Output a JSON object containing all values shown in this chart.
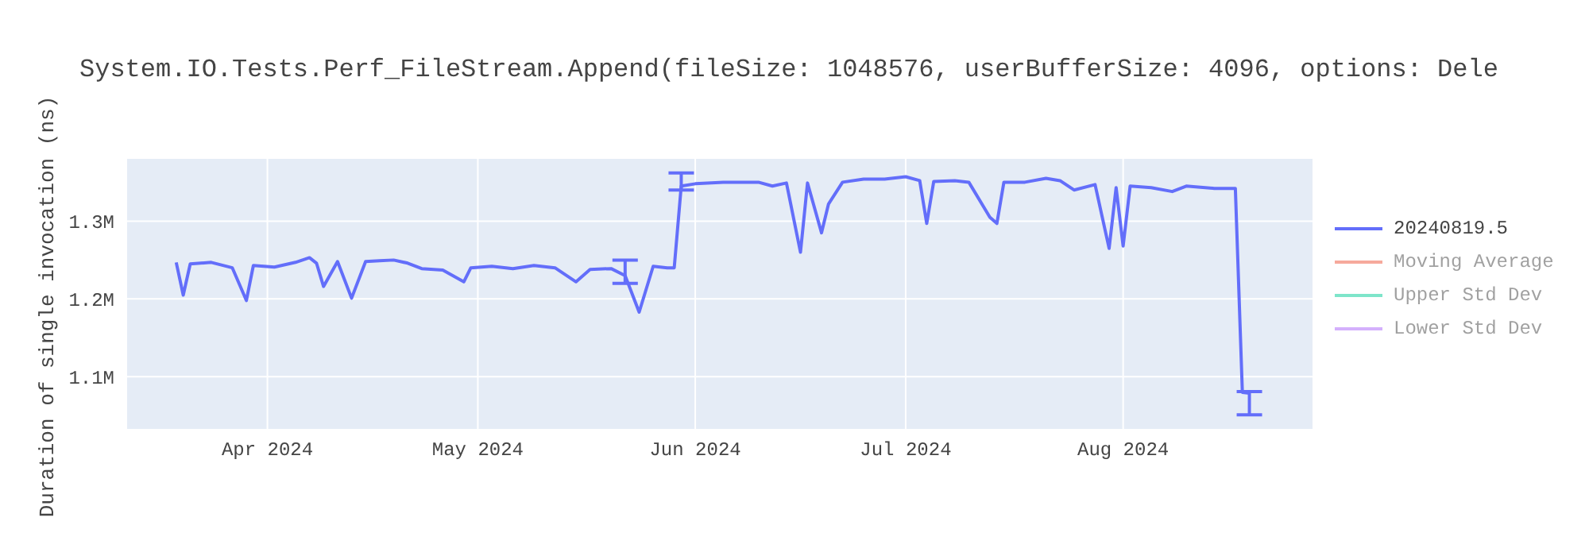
{
  "chart_data": {
    "type": "line",
    "title": "System.IO.Tests.Perf_FileStream.Append(fileSize: 1048576, userBufferSize: 4096, options: Dele",
    "ylabel": "Duration of single invocation (ns)",
    "x": [
      "2024-03-19",
      "2024-03-20",
      "2024-03-21",
      "2024-03-24",
      "2024-03-27",
      "2024-03-29",
      "2024-03-30",
      "2024-04-02",
      "2024-04-05",
      "2024-04-07",
      "2024-04-08",
      "2024-04-09",
      "2024-04-11",
      "2024-04-13",
      "2024-04-15",
      "2024-04-17",
      "2024-04-19",
      "2024-04-21",
      "2024-04-23",
      "2024-04-26",
      "2024-04-29",
      "2024-04-30",
      "2024-05-03",
      "2024-05-06",
      "2024-05-09",
      "2024-05-12",
      "2024-05-15",
      "2024-05-17",
      "2024-05-20",
      "2024-05-22",
      "2024-05-24",
      "2024-05-26",
      "2024-05-28",
      "2024-05-29",
      "2024-05-30",
      "2024-06-01",
      "2024-06-05",
      "2024-06-10",
      "2024-06-12",
      "2024-06-14",
      "2024-06-16",
      "2024-06-17",
      "2024-06-19",
      "2024-06-20",
      "2024-06-22",
      "2024-06-25",
      "2024-06-28",
      "2024-07-01",
      "2024-07-03",
      "2024-07-04",
      "2024-07-05",
      "2024-07-08",
      "2024-07-10",
      "2024-07-13",
      "2024-07-14",
      "2024-07-15",
      "2024-07-18",
      "2024-07-21",
      "2024-07-23",
      "2024-07-25",
      "2024-07-28",
      "2024-07-30",
      "2024-07-31",
      "2024-08-01",
      "2024-08-02",
      "2024-08-05",
      "2024-08-08",
      "2024-08-10",
      "2024-08-14",
      "2024-08-17",
      "2024-08-18",
      "2024-08-19"
    ],
    "series": [
      {
        "name": "20240819.5",
        "color": "#636efa",
        "values": [
          1247000,
          1205000,
          1245000,
          1247000,
          1240000,
          1198000,
          1243000,
          1241000,
          1247000,
          1253000,
          1246000,
          1216000,
          1248000,
          1201000,
          1248000,
          1249000,
          1250000,
          1246000,
          1239000,
          1237000,
          1222000,
          1240000,
          1242000,
          1239000,
          1243000,
          1240000,
          1222000,
          1238000,
          1239000,
          1230000,
          1183000,
          1242000,
          1240000,
          1240000,
          1345000,
          1348000,
          1350000,
          1350000,
          1345000,
          1349000,
          1260000,
          1349000,
          1285000,
          1322000,
          1350000,
          1354000,
          1354000,
          1357000,
          1352000,
          1297000,
          1351000,
          1352000,
          1350000,
          1305000,
          1297000,
          1350000,
          1350000,
          1355000,
          1352000,
          1340000,
          1347000,
          1265000,
          1343000,
          1268000,
          1345000,
          1343000,
          1338000,
          1345000,
          1342000,
          1342000,
          1080000,
          1079000
        ],
        "errors": [
          null,
          null,
          null,
          null,
          null,
          null,
          null,
          null,
          null,
          null,
          null,
          null,
          null,
          null,
          null,
          null,
          null,
          null,
          null,
          null,
          null,
          null,
          null,
          null,
          null,
          null,
          null,
          null,
          null,
          [
            1220000,
            1250000
          ],
          null,
          null,
          null,
          null,
          [
            1340000,
            1362000
          ],
          null,
          null,
          null,
          null,
          null,
          null,
          null,
          null,
          null,
          null,
          null,
          null,
          null,
          null,
          null,
          null,
          null,
          null,
          null,
          null,
          null,
          null,
          null,
          null,
          null,
          null,
          null,
          null,
          null,
          null,
          null,
          null,
          null,
          null,
          null,
          null,
          [
            1051000,
            1081000
          ]
        ]
      },
      {
        "name": "Moving Average",
        "color": "#ef553b",
        "values": [
          null,
          null,
          null,
          null,
          null,
          null,
          null,
          null,
          null,
          null,
          null,
          null,
          null,
          null,
          null,
          null,
          null,
          null,
          null,
          null,
          null,
          null,
          null,
          null,
          null,
          null,
          null,
          null,
          null,
          null,
          null,
          null,
          null,
          null,
          null,
          null,
          null,
          null,
          null,
          null,
          null,
          null,
          null,
          null,
          null,
          null,
          null,
          null,
          null,
          null,
          null,
          null,
          null,
          null,
          null,
          null,
          null,
          null,
          null,
          null,
          null,
          null,
          null,
          null,
          null,
          null,
          null,
          null,
          null,
          null,
          null,
          null
        ]
      },
      {
        "name": "Upper Std Dev",
        "color": "#00cc96",
        "values": [
          null,
          null,
          null,
          null,
          null,
          null,
          null,
          null,
          null,
          null,
          null,
          null,
          null,
          null,
          null,
          null,
          null,
          null,
          null,
          null,
          null,
          null,
          null,
          null,
          null,
          null,
          null,
          null,
          null,
          null,
          null,
          null,
          null,
          null,
          null,
          null,
          null,
          null,
          null,
          null,
          null,
          null,
          null,
          null,
          null,
          null,
          null,
          null,
          null,
          null,
          null,
          null,
          null,
          null,
          null,
          null,
          null,
          null,
          null,
          null,
          null,
          null,
          null,
          null,
          null,
          null,
          null,
          null,
          null,
          null,
          null,
          null
        ]
      },
      {
        "name": "Lower Std Dev",
        "color": "#ab63fa",
        "values": [
          null,
          null,
          null,
          null,
          null,
          null,
          null,
          null,
          null,
          null,
          null,
          null,
          null,
          null,
          null,
          null,
          null,
          null,
          null,
          null,
          null,
          null,
          null,
          null,
          null,
          null,
          null,
          null,
          null,
          null,
          null,
          null,
          null,
          null,
          null,
          null,
          null,
          null,
          null,
          null,
          null,
          null,
          null,
          null,
          null,
          null,
          null,
          null,
          null,
          null,
          null,
          null,
          null,
          null,
          null,
          null,
          null,
          null,
          null,
          null,
          null,
          null,
          null,
          null,
          null,
          null,
          null,
          null,
          null,
          null,
          null,
          null
        ]
      }
    ],
    "xlim": [
      "2024-03-12",
      "2024-08-28"
    ],
    "xticks": [
      {
        "value": "2024-04-01",
        "label": "Apr 2024"
      },
      {
        "value": "2024-05-01",
        "label": "May 2024"
      },
      {
        "value": "2024-06-01",
        "label": "Jun 2024"
      },
      {
        "value": "2024-07-01",
        "label": "Jul 2024"
      },
      {
        "value": "2024-08-01",
        "label": "Aug 2024"
      }
    ],
    "ylim": [
      1033000,
      1380000
    ],
    "yticks": [
      {
        "value": 1100000,
        "label": "1.1M"
      },
      {
        "value": 1200000,
        "label": "1.2M"
      },
      {
        "value": 1300000,
        "label": "1.3M"
      }
    ],
    "grid": true,
    "legend": "top right",
    "marker": "none",
    "line_style": "solid"
  }
}
